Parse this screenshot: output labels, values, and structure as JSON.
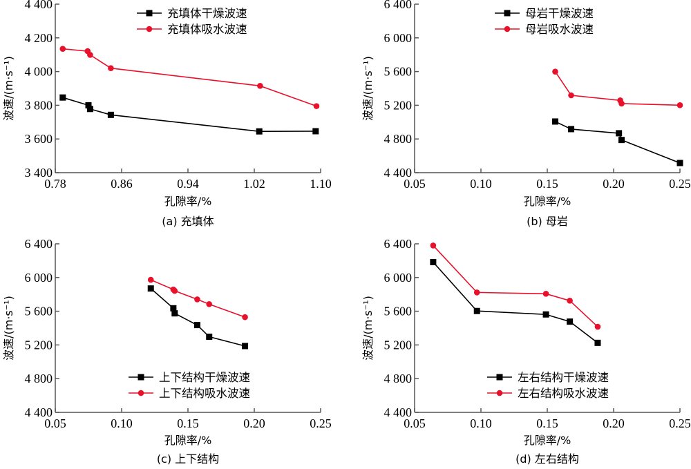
{
  "colors": {
    "dry": "#000000",
    "wet": "#e8102a",
    "axis": "#555555"
  },
  "chart_data": [
    {
      "type": "line",
      "caption": "(a) 充填体",
      "xlabel": "孔隙率/%",
      "ylabel": "波速/(m·s⁻¹)",
      "xlim": [
        0.78,
        1.1
      ],
      "ylim": [
        3400,
        4400
      ],
      "xticks": [
        0.78,
        0.86,
        0.94,
        1.02,
        1.1
      ],
      "xtick_labels": [
        "0.78",
        "0.86",
        "0.94",
        "1.02",
        "1.10"
      ],
      "yticks": [
        3400,
        3600,
        3800,
        4000,
        4200,
        4400
      ],
      "ytick_labels": [
        "3 400",
        "3 600",
        "3 800",
        "4 000",
        "4 200",
        "4 400"
      ],
      "legend_position": "top-right",
      "series": [
        {
          "name": "充填体干燥波速",
          "marker": "square",
          "color_key": "dry",
          "x": [
            0.789,
            0.82,
            0.822,
            0.847,
            1.026,
            1.094
          ],
          "y": [
            3846,
            3800,
            3778,
            3743,
            3645,
            3646
          ]
        },
        {
          "name": "充填体吸水波速",
          "marker": "circle",
          "color_key": "wet",
          "x": [
            0.789,
            0.819,
            0.822,
            0.847,
            1.027,
            1.095
          ],
          "y": [
            4135,
            4121,
            4099,
            4020,
            3915,
            3795
          ]
        }
      ]
    },
    {
      "type": "line",
      "caption": "(b) 母岩",
      "xlabel": "孔隙率/%",
      "ylabel": "波速/(m·s⁻¹)",
      "xlim": [
        0.05,
        0.25
      ],
      "ylim": [
        4400,
        6400
      ],
      "xticks": [
        0.05,
        0.1,
        0.15,
        0.2,
        0.25
      ],
      "xtick_labels": [
        "0.05",
        "0.10",
        "0.15",
        "0.20",
        "0.25"
      ],
      "yticks": [
        4400,
        4800,
        5200,
        5600,
        6000,
        6400
      ],
      "ytick_labels": [
        "4 400",
        "4 800",
        "5 200",
        "5 600",
        "6 000",
        "6 400"
      ],
      "legend_position": "top-center",
      "series": [
        {
          "name": "母岩干燥波速",
          "marker": "square",
          "color_key": "dry",
          "x": [
            0.156,
            0.168,
            0.204,
            0.206,
            0.25
          ],
          "y": [
            5007,
            4917,
            4868,
            4788,
            4515
          ]
        },
        {
          "name": "母岩吸水波速",
          "marker": "circle",
          "color_key": "wet",
          "x": [
            0.156,
            0.168,
            0.205,
            0.206,
            0.25
          ],
          "y": [
            5599,
            5318,
            5258,
            5220,
            5201
          ]
        }
      ]
    },
    {
      "type": "line",
      "caption": "(c) 上下结构",
      "xlabel": "孔隙率/%",
      "ylabel": "波速/(m·s⁻¹)",
      "xlim": [
        0.05,
        0.25
      ],
      "ylim": [
        4400,
        6400
      ],
      "xticks": [
        0.05,
        0.1,
        0.15,
        0.2,
        0.25
      ],
      "xtick_labels": [
        "0.05",
        "0.10",
        "0.15",
        "0.20",
        "0.25"
      ],
      "yticks": [
        4400,
        4800,
        5200,
        5600,
        6000,
        6400
      ],
      "ytick_labels": [
        "4 400",
        "4 800",
        "5 200",
        "5 600",
        "6 000",
        "6 400"
      ],
      "legend_position": "bottom-center",
      "series": [
        {
          "name": "上下结构干燥波速",
          "marker": "square",
          "color_key": "dry",
          "x": [
            0.122,
            0.139,
            0.14,
            0.157,
            0.166,
            0.193
          ],
          "y": [
            5870,
            5635,
            5575,
            5436,
            5297,
            5187
          ]
        },
        {
          "name": "上下结构吸水波速",
          "marker": "circle",
          "color_key": "wet",
          "x": [
            0.122,
            0.139,
            0.14,
            0.157,
            0.166,
            0.193
          ],
          "y": [
            5973,
            5858,
            5842,
            5741,
            5684,
            5530
          ]
        }
      ]
    },
    {
      "type": "line",
      "caption": "(d) 左右结构",
      "xlabel": "孔隙率/%",
      "ylabel": "波速/(m·s⁻¹)",
      "xlim": [
        0.05,
        0.25
      ],
      "ylim": [
        4400,
        6400
      ],
      "xticks": [
        0.05,
        0.1,
        0.15,
        0.2,
        0.25
      ],
      "xtick_labels": [
        "0.05",
        "0.10",
        "0.15",
        "0.20",
        "0.25"
      ],
      "yticks": [
        4400,
        4800,
        5200,
        5600,
        6000,
        6400
      ],
      "ytick_labels": [
        "4 400",
        "4 800",
        "5 200",
        "5 600",
        "6 000",
        "6 400"
      ],
      "legend_position": "bottom-center",
      "series": [
        {
          "name": "左右结构干燥波速",
          "marker": "square",
          "color_key": "dry",
          "x": [
            0.064,
            0.097,
            0.149,
            0.167,
            0.188
          ],
          "y": [
            6183,
            5603,
            5562,
            5477,
            5225
          ]
        },
        {
          "name": "左右结构吸水波速",
          "marker": "circle",
          "color_key": "wet",
          "x": [
            0.064,
            0.097,
            0.149,
            0.167,
            0.188
          ],
          "y": [
            6380,
            5823,
            5807,
            5725,
            5416
          ]
        }
      ]
    }
  ]
}
